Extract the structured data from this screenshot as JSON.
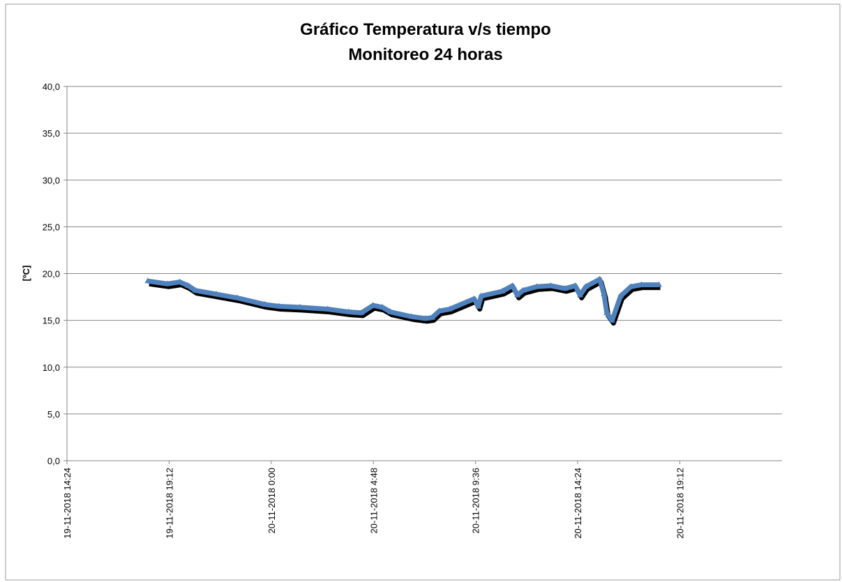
{
  "chart_data": {
    "type": "line",
    "title": "Gráfico Temperatura v/s tiempo",
    "subtitle": "Monitoreo 24 horas",
    "y_label": "[ºC]",
    "x": [
      "19-11-2018 18:12",
      "19-11-2018 19:07",
      "19-11-2018 19:42",
      "19-11-2018 20:06",
      "19-11-2018 20:26",
      "19-11-2018 21:25",
      "19-11-2018 22:24",
      "19-11-2018 23:42",
      "20-11-2018 0:22",
      "20-11-2018 1:21",
      "20-11-2018 2:39",
      "20-11-2018 3:38",
      "20-11-2018 4:14",
      "20-11-2018 4:47",
      "20-11-2018 5:13",
      "20-11-2018 5:36",
      "20-11-2018 6:35",
      "20-11-2018 7:15",
      "20-11-2018 7:34",
      "20-11-2018 7:54",
      "20-11-2018 8:23",
      "20-11-2018 9:32",
      "20-11-2018 9:44",
      "20-11-2018 9:52",
      "20-11-2018 10:51",
      "20-11-2018 11:20",
      "20-11-2018 11:34",
      "20-11-2018 11:50",
      "20-11-2018 12:29",
      "20-11-2018 13:08",
      "20-11-2018 13:48",
      "20-11-2018 14:17",
      "20-11-2018 14:31",
      "20-11-2018 14:47",
      "20-11-2018 15:26",
      "20-11-2018 15:38",
      "20-11-2018 15:46",
      "20-11-2018 16:01",
      "20-11-2018 16:25",
      "20-11-2018 16:54",
      "20-11-2018 17:24",
      "20-11-2018 18:13"
    ],
    "series": [
      {
        "color": "#4f81bd",
        "values": [
          19.2,
          18.9,
          19.1,
          18.7,
          18.2,
          17.8,
          17.4,
          16.7,
          16.5,
          16.4,
          16.2,
          15.9,
          15.8,
          16.6,
          16.4,
          15.9,
          15.4,
          15.2,
          15.3,
          16.0,
          16.2,
          17.3,
          16.5,
          17.6,
          18.1,
          18.7,
          17.7,
          18.2,
          18.6,
          18.7,
          18.4,
          18.7,
          17.7,
          18.6,
          19.4,
          17.8,
          15.8,
          15.0,
          17.6,
          18.6,
          18.8,
          18.8
        ]
      }
    ],
    "xlim": [
      "19-11-2018 14:24",
      "21-11-2018 0:00"
    ],
    "xticks": [
      "19-11-2018 14:24",
      "19-11-2018 19:12",
      "20-11-2018 0:00",
      "20-11-2018 4:48",
      "20-11-2018 9:36",
      "20-11-2018 14:24",
      "20-11-2018 19:12"
    ],
    "ylim": [
      0,
      40
    ],
    "yticks": [
      {
        "value": 0,
        "label": "0,0"
      },
      {
        "value": 5,
        "label": "5,0"
      },
      {
        "value": 10,
        "label": "10,0"
      },
      {
        "value": 15,
        "label": "15,0"
      },
      {
        "value": 20,
        "label": "20,0"
      },
      {
        "value": 25,
        "label": "25,0"
      },
      {
        "value": 30,
        "label": "30,0"
      },
      {
        "value": 35,
        "label": "35,0"
      },
      {
        "value": 40,
        "label": "40,0"
      }
    ],
    "grid": true
  }
}
